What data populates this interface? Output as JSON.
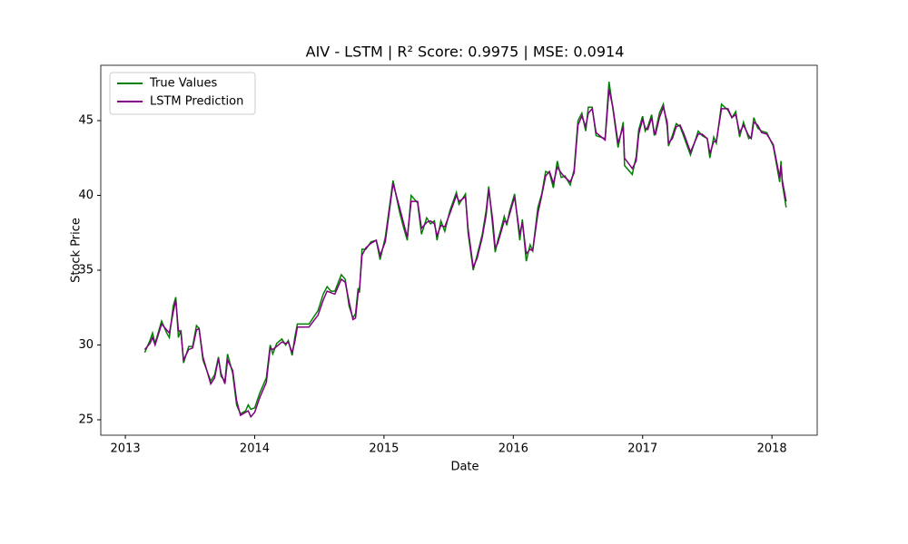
{
  "chart_data": {
    "type": "line",
    "title": "AIV - LSTM | R² Score: 0.9975 | MSE: 0.0914",
    "x_label": "Date",
    "y_label": "Stock Price",
    "x": [
      2013.15,
      2013.19,
      2013.21,
      2013.23,
      2013.28,
      2013.32,
      2013.34,
      2013.37,
      2013.39,
      2013.41,
      2013.43,
      2013.45,
      2013.49,
      2013.52,
      2013.55,
      2013.57,
      2013.6,
      2013.66,
      2013.69,
      2013.72,
      2013.74,
      2013.77,
      2013.79,
      2013.83,
      2013.86,
      2013.89,
      2013.93,
      2013.95,
      2013.97,
      2014.0,
      2014.04,
      2014.09,
      2014.12,
      2014.14,
      2014.17,
      2014.21,
      2014.24,
      2014.26,
      2014.29,
      2014.31,
      2014.33,
      2014.42,
      2014.49,
      2014.53,
      2014.56,
      2014.59,
      2014.62,
      2014.67,
      2014.7,
      2014.73,
      2014.76,
      2014.78,
      2014.8,
      2014.81,
      2014.83,
      2014.86,
      2014.9,
      2014.94,
      2014.97,
      2015.01,
      2015.07,
      2015.12,
      2015.15,
      2015.18,
      2015.21,
      2015.26,
      2015.29,
      2015.33,
      2015.36,
      2015.39,
      2015.41,
      2015.44,
      2015.47,
      2015.51,
      2015.56,
      2015.58,
      2015.63,
      2015.65,
      2015.69,
      2015.72,
      2015.76,
      2015.79,
      2015.81,
      2015.84,
      2015.86,
      2015.88,
      2015.9,
      2015.93,
      2015.95,
      2015.97,
      2016.01,
      2016.05,
      2016.07,
      2016.1,
      2016.13,
      2016.15,
      2016.19,
      2016.22,
      2016.25,
      2016.28,
      2016.31,
      2016.34,
      2016.37,
      2016.4,
      2016.44,
      2016.47,
      2016.5,
      2016.53,
      2016.56,
      2016.58,
      2016.61,
      2016.64,
      2016.71,
      2016.74,
      2016.77,
      2016.81,
      2016.85,
      2016.86,
      2016.92,
      2016.95,
      2016.97,
      2017.0,
      2017.02,
      2017.04,
      2017.07,
      2017.09,
      2017.1,
      2017.13,
      2017.16,
      2017.19,
      2017.2,
      2017.23,
      2017.26,
      2017.29,
      2017.32,
      2017.37,
      2017.43,
      2017.46,
      2017.5,
      2017.52,
      2017.55,
      2017.57,
      2017.61,
      2017.66,
      2017.69,
      2017.72,
      2017.75,
      2017.78,
      2017.82,
      2017.84,
      2017.86,
      2017.89,
      2017.92,
      2017.96,
      2018.01,
      2018.06,
      2018.07,
      2018.08,
      2018.11
    ],
    "series": [
      {
        "name": "True Values",
        "color": "#008000",
        "values": [
          29.5,
          30.3,
          30.8,
          30.1,
          31.6,
          30.8,
          30.5,
          32.6,
          33.2,
          30.5,
          31.0,
          28.8,
          29.9,
          29.9,
          31.3,
          31.1,
          29.0,
          27.6,
          28.0,
          29.2,
          27.9,
          27.6,
          29.4,
          28.1,
          26.0,
          25.4,
          25.6,
          26.0,
          25.7,
          25.8,
          26.8,
          27.8,
          30.0,
          29.4,
          30.1,
          30.4,
          30.0,
          30.3,
          29.3,
          30.5,
          31.4,
          31.4,
          32.3,
          33.4,
          33.9,
          33.6,
          33.6,
          34.7,
          34.4,
          32.6,
          31.8,
          32.1,
          33.8,
          33.5,
          36.4,
          36.4,
          36.9,
          37.0,
          35.7,
          37.2,
          41.0,
          38.9,
          37.9,
          37.0,
          40.0,
          39.5,
          37.4,
          38.5,
          38.1,
          38.3,
          37.0,
          38.3,
          37.6,
          39.0,
          40.2,
          39.4,
          40.1,
          37.5,
          35.0,
          36.0,
          37.4,
          39.0,
          40.6,
          38.0,
          36.2,
          37.0,
          37.6,
          38.6,
          38.0,
          38.9,
          40.1,
          37.0,
          38.4,
          35.6,
          36.7,
          36.3,
          39.2,
          40.1,
          41.6,
          41.5,
          40.5,
          42.3,
          41.2,
          41.3,
          40.7,
          41.7,
          45.0,
          45.5,
          44.3,
          45.9,
          45.9,
          44.0,
          43.8,
          47.6,
          45.8,
          43.2,
          44.9,
          42.0,
          41.4,
          42.6,
          44.4,
          45.3,
          44.3,
          44.6,
          45.4,
          44.0,
          44.3,
          45.5,
          46.1,
          44.6,
          43.3,
          44.0,
          44.8,
          44.6,
          43.9,
          42.7,
          44.3,
          44.0,
          43.8,
          42.5,
          43.9,
          43.5,
          46.1,
          45.7,
          45.2,
          45.6,
          43.9,
          44.9,
          43.8,
          43.9,
          45.2,
          44.5,
          44.3,
          44.2,
          43.3,
          40.9,
          42.3,
          40.8,
          39.2
        ]
      },
      {
        "name": "LSTM Prediction",
        "color": "#800080",
        "values": [
          29.7,
          30.1,
          30.5,
          30.0,
          31.4,
          31.0,
          30.8,
          32.2,
          33.0,
          31.0,
          30.8,
          29.0,
          29.7,
          29.8,
          31.0,
          31.1,
          29.2,
          27.4,
          27.8,
          29.1,
          28.1,
          27.4,
          29.0,
          28.3,
          26.3,
          25.3,
          25.5,
          25.6,
          25.2,
          25.5,
          26.5,
          27.5,
          29.8,
          29.7,
          29.9,
          30.2,
          30.1,
          30.2,
          29.5,
          30.2,
          31.2,
          31.2,
          32.0,
          33.0,
          33.6,
          33.5,
          33.4,
          34.4,
          34.2,
          32.9,
          31.7,
          31.8,
          33.5,
          33.7,
          36.0,
          36.5,
          36.8,
          37.0,
          36.0,
          36.9,
          40.8,
          39.2,
          38.2,
          37.2,
          39.6,
          39.6,
          37.8,
          38.2,
          38.3,
          38.1,
          37.3,
          38.0,
          37.9,
          38.8,
          40.0,
          39.6,
          39.9,
          37.8,
          35.2,
          35.8,
          37.2,
          38.7,
          40.4,
          38.4,
          36.5,
          36.8,
          37.4,
          38.3,
          38.2,
          38.7,
          39.9,
          37.4,
          38.2,
          36.1,
          36.4,
          36.3,
          38.8,
          40.0,
          41.3,
          41.6,
          40.8,
          41.9,
          41.5,
          41.2,
          40.9,
          41.5,
          44.7,
          45.3,
          44.6,
          45.5,
          45.8,
          44.2,
          43.7,
          47.1,
          45.9,
          43.5,
          44.6,
          42.5,
          41.8,
          42.3,
          44.1,
          45.1,
          44.5,
          44.4,
          45.2,
          44.2,
          44.1,
          45.2,
          45.9,
          44.9,
          43.5,
          43.8,
          44.6,
          44.7,
          44.1,
          42.9,
          44.1,
          44.1,
          43.8,
          42.8,
          43.6,
          43.6,
          45.8,
          45.8,
          45.2,
          45.4,
          44.2,
          44.7,
          44.0,
          43.8,
          44.9,
          44.7,
          44.2,
          44.1,
          43.4,
          41.2,
          42.0,
          41.0,
          39.6
        ]
      }
    ],
    "xlim": [
      2012.81,
      2018.35
    ],
    "xticks": [
      2013,
      2014,
      2015,
      2016,
      2017,
      2018
    ],
    "ylim": [
      23.97,
      48.7
    ],
    "yticks": [
      25,
      30,
      35,
      40,
      45
    ],
    "legend": "upper left"
  }
}
